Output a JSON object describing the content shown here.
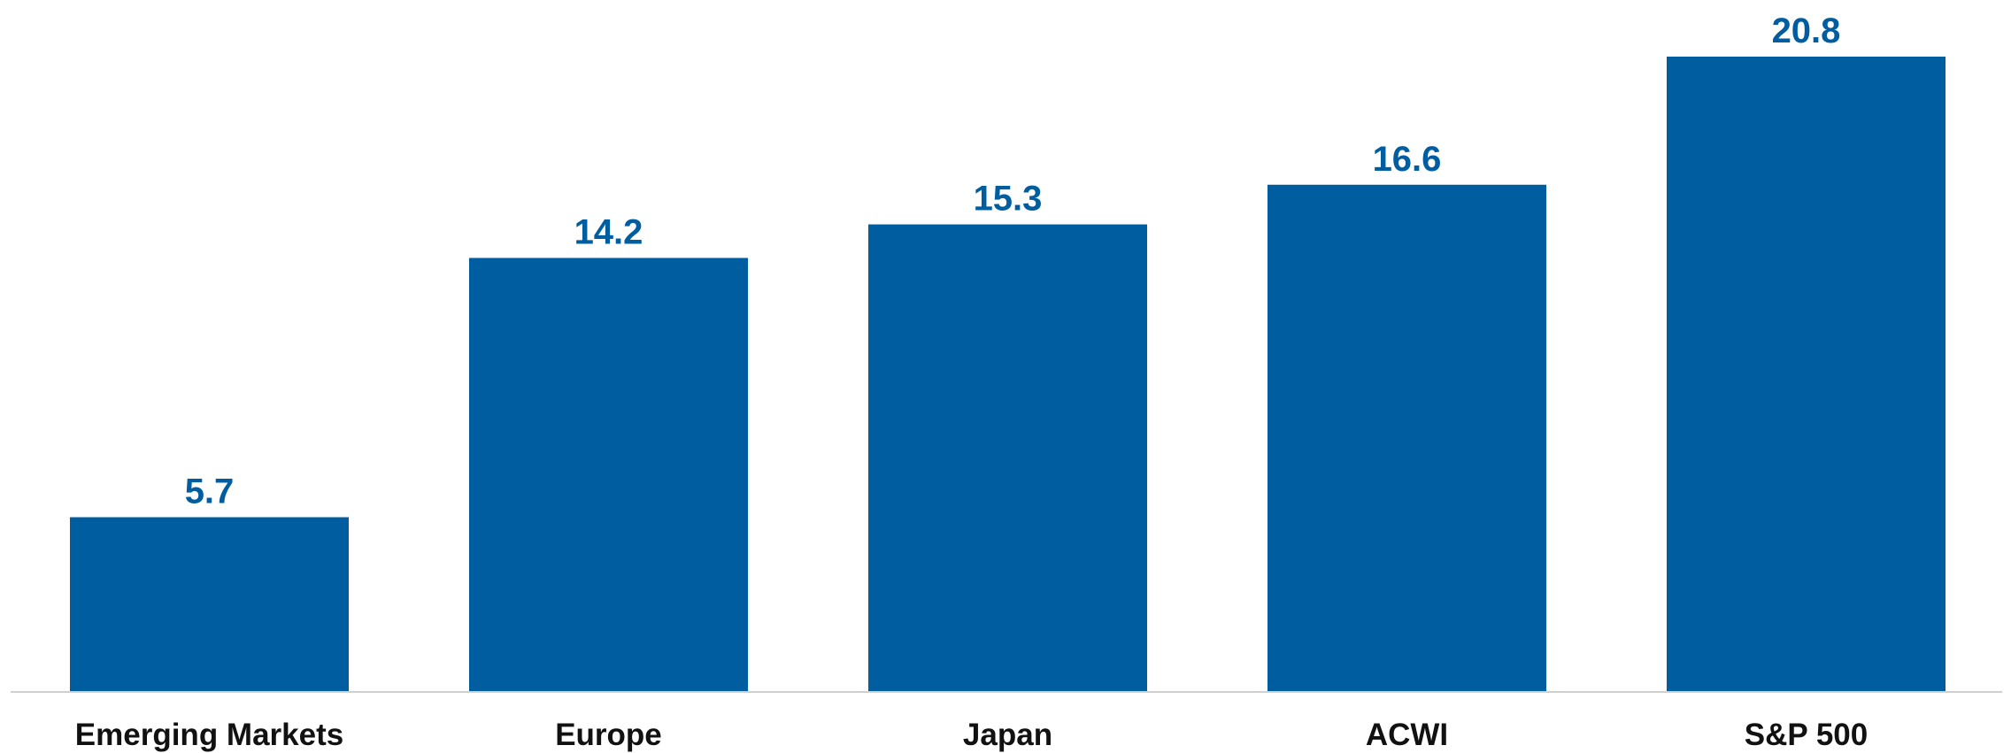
{
  "chart_data": {
    "type": "bar",
    "categories": [
      "Emerging Markets",
      "Europe",
      "Japan",
      "ACWI",
      "S&P 500"
    ],
    "values": [
      5.7,
      14.2,
      15.3,
      16.6,
      20.8
    ],
    "data_labels": [
      "5.7",
      "14.2",
      "15.3",
      "16.6",
      "20.8"
    ],
    "title": "",
    "xlabel": "",
    "ylabel": "",
    "ylim": [
      0,
      20.8
    ],
    "grid": false,
    "legend": "none",
    "colors": {
      "bar": "#005DA0",
      "value_label": "#005DA0",
      "category_label": "#111111",
      "baseline": "#D0D0D0"
    }
  }
}
